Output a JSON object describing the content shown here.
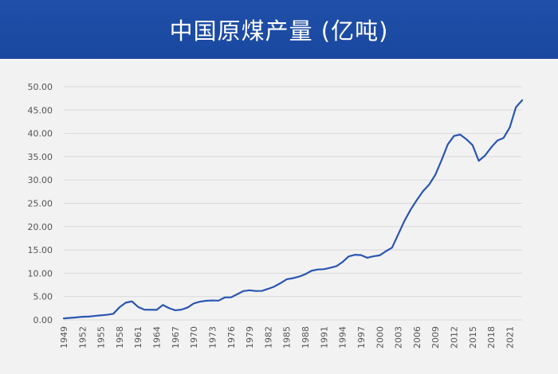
{
  "header": {
    "title": "中国原煤产量 (亿吨)"
  },
  "theme": {
    "header_bg": "#1f4fa8",
    "line_color": "#2a56b0",
    "grid_color": "#d9d9d9",
    "text_color": "#555555",
    "page_bg": "#f2f2f2"
  },
  "chart_data": {
    "type": "line",
    "title": "中国原煤产量 (亿吨)",
    "xlabel": "",
    "ylabel": "",
    "ylim": [
      0,
      50
    ],
    "yticks": [
      "0.00",
      "5.00",
      "10.00",
      "15.00",
      "20.00",
      "25.00",
      "30.00",
      "35.00",
      "40.00",
      "45.00",
      "50.00"
    ],
    "xticks": [
      "1949",
      "1952",
      "1955",
      "1958",
      "1961",
      "1964",
      "1967",
      "1970",
      "1973",
      "1976",
      "1979",
      "1982",
      "1985",
      "1988",
      "1991",
      "1994",
      "1997",
      "2000",
      "2003",
      "2006",
      "2009",
      "2012",
      "2015",
      "2018",
      "2021"
    ],
    "grid": true,
    "legend": "none",
    "series": [
      {
        "x": [
          1949,
          1950,
          1951,
          1952,
          1953,
          1954,
          1955,
          1956,
          1957,
          1958,
          1959,
          1960,
          1961,
          1962,
          1963,
          1964,
          1965,
          1966,
          1967,
          1968,
          1969,
          1970,
          1971,
          1972,
          1973,
          1974,
          1975,
          1976,
          1977,
          1978,
          1979,
          1980,
          1981,
          1982,
          1983,
          1984,
          1985,
          1986,
          1987,
          1988,
          1989,
          1990,
          1991,
          1992,
          1993,
          1994,
          1995,
          1996,
          1997,
          1998,
          1999,
          2000,
          2001,
          2002,
          2003,
          2004,
          2005,
          2006,
          2007,
          2008,
          2009,
          2010,
          2011,
          2012,
          2013,
          2014,
          2015,
          2016,
          2017,
          2018,
          2019,
          2020,
          2021,
          2022,
          2023
        ],
        "values": [
          0.32,
          0.43,
          0.53,
          0.66,
          0.7,
          0.84,
          0.98,
          1.1,
          1.31,
          2.7,
          3.69,
          3.97,
          2.78,
          2.2,
          2.17,
          2.15,
          3.2,
          2.52,
          2.06,
          2.2,
          2.66,
          3.54,
          3.92,
          4.1,
          4.17,
          4.13,
          4.82,
          4.83,
          5.5,
          6.18,
          6.35,
          6.2,
          6.22,
          6.66,
          7.15,
          7.89,
          8.72,
          8.94,
          9.28,
          9.8,
          10.54,
          10.8,
          10.87,
          11.16,
          11.5,
          12.4,
          13.61,
          13.97,
          13.88,
          13.32,
          13.64,
          13.84,
          14.72,
          15.5,
          18.35,
          21.23,
          23.65,
          25.7,
          27.6,
          29.03,
          31.15,
          34.28,
          37.64,
          39.45,
          39.74,
          38.74,
          37.47,
          34.11,
          35.24,
          36.98,
          38.46,
          39.02,
          41.26,
          45.6,
          47.1
        ]
      }
    ]
  }
}
